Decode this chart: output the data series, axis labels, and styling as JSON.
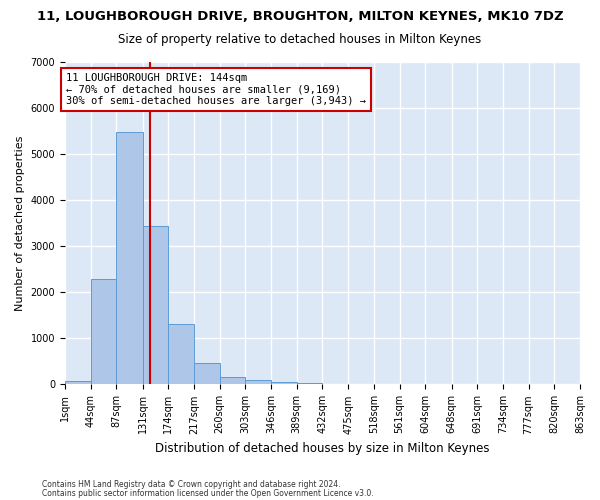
{
  "title": "11, LOUGHBOROUGH DRIVE, BROUGHTON, MILTON KEYNES, MK10 7DZ",
  "subtitle": "Size of property relative to detached houses in Milton Keynes",
  "xlabel": "Distribution of detached houses by size in Milton Keynes",
  "ylabel": "Number of detached properties",
  "footnote1": "Contains HM Land Registry data © Crown copyright and database right 2024.",
  "footnote2": "Contains public sector information licensed under the Open Government Licence v3.0.",
  "bar_color": "#aec6e8",
  "bar_edge_color": "#5b9bd5",
  "background_color": "#dce8f5",
  "fig_background": "#ffffff",
  "grid_color": "#ffffff",
  "vline_color": "#cc0000",
  "vline_x": 144,
  "annotation_text": "11 LOUGHBOROUGH DRIVE: 144sqm\n← 70% of detached houses are smaller (9,169)\n30% of semi-detached houses are larger (3,943) →",
  "bin_edges": [
    1,
    44,
    87,
    131,
    174,
    217,
    260,
    303,
    346,
    389,
    432,
    475,
    518,
    561,
    604,
    648,
    691,
    734,
    777,
    820,
    863
  ],
  "bar_heights": [
    75,
    2280,
    5480,
    3430,
    1310,
    460,
    165,
    90,
    55,
    30,
    20,
    10,
    5,
    3,
    2,
    1,
    1,
    1,
    0,
    1
  ],
  "ylim": [
    0,
    7000
  ],
  "yticks": [
    0,
    1000,
    2000,
    3000,
    4000,
    5000,
    6000,
    7000
  ],
  "title_fontsize": 9.5,
  "subtitle_fontsize": 8.5,
  "ylabel_fontsize": 8.0,
  "xlabel_fontsize": 8.5,
  "tick_fontsize": 7.0,
  "annotation_fontsize": 7.5,
  "footnote_fontsize": 5.5
}
